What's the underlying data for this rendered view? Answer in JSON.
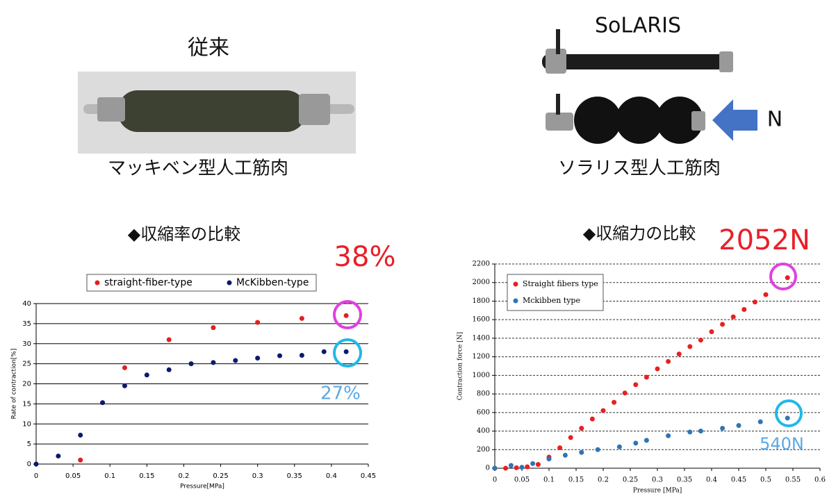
{
  "photos": {
    "left_title": "従来",
    "left_caption": "マッキベン型人工筋肉",
    "right_title": "SoLARIS",
    "right_caption": "ソラリス型人工筋肉",
    "force_label": "N"
  },
  "chart_data": [
    {
      "type": "scatter",
      "title": "◆収縮率の比較",
      "x_label": "Pressure[MPa]",
      "y_label": "Rate of contraction[%]",
      "xlim": [
        0,
        0.45
      ],
      "xticks": [
        0,
        0.05,
        0.1,
        0.15,
        0.2,
        0.25,
        0.3,
        0.35,
        0.4,
        0.45
      ],
      "ylim": [
        0,
        40
      ],
      "yticks": [
        0,
        5,
        10,
        15,
        20,
        25,
        30,
        35,
        40
      ],
      "grid": true,
      "series": [
        {
          "name": "straight-fiber-type",
          "color": "#e02020",
          "x": [
            0.06,
            0.12,
            0.18,
            0.24,
            0.3,
            0.36,
            0.42
          ],
          "values": [
            1,
            24,
            31,
            34,
            35.3,
            36.3,
            37
          ]
        },
        {
          "name": "McKibben-type",
          "color": "#0b1a6e",
          "x": [
            0,
            0.03,
            0.06,
            0.09,
            0.12,
            0.15,
            0.18,
            0.21,
            0.24,
            0.27,
            0.3,
            0.33,
            0.36,
            0.39,
            0.42
          ],
          "values": [
            0,
            2,
            7.2,
            15.3,
            19.5,
            22.2,
            23.5,
            25,
            25.3,
            25.8,
            26.4,
            27,
            27.1,
            28,
            28
          ]
        }
      ],
      "annotations": [
        "38%",
        "27%"
      ]
    },
    {
      "type": "scatter",
      "title": "◆収縮力の比較",
      "x_label": "Pressure [MPa]",
      "y_label": "Contraction force [N]",
      "xlim": [
        0,
        0.6
      ],
      "xticks": [
        0,
        0.05,
        0.1,
        0.15,
        0.2,
        0.25,
        0.3,
        0.35,
        0.4,
        0.45,
        0.5,
        0.55,
        0.6
      ],
      "ylim": [
        0,
        2200
      ],
      "yticks": [
        0,
        200,
        400,
        600,
        800,
        1000,
        1200,
        1400,
        1600,
        1800,
        2000,
        2200
      ],
      "grid": true,
      "series": [
        {
          "name": "Straight fibers type",
          "color": "#e82020",
          "x": [
            0,
            0.02,
            0.04,
            0.06,
            0.08,
            0.1,
            0.12,
            0.14,
            0.16,
            0.18,
            0.2,
            0.22,
            0.24,
            0.26,
            0.28,
            0.3,
            0.32,
            0.34,
            0.36,
            0.38,
            0.4,
            0.42,
            0.44,
            0.46,
            0.48,
            0.5,
            0.54
          ],
          "values": [
            0,
            0,
            5,
            15,
            40,
            120,
            220,
            330,
            430,
            530,
            620,
            710,
            810,
            900,
            980,
            1070,
            1150,
            1230,
            1310,
            1380,
            1470,
            1550,
            1630,
            1710,
            1790,
            1870,
            2052
          ]
        },
        {
          "name": "Mckibben type",
          "color": "#2e75b6",
          "x": [
            0,
            0.03,
            0.05,
            0.07,
            0.1,
            0.13,
            0.16,
            0.19,
            0.23,
            0.26,
            0.28,
            0.32,
            0.36,
            0.38,
            0.42,
            0.45,
            0.49,
            0.54
          ],
          "values": [
            0,
            30,
            10,
            50,
            100,
            140,
            170,
            200,
            230,
            270,
            300,
            350,
            390,
            400,
            430,
            460,
            500,
            540
          ]
        }
      ],
      "annotations": [
        "2052N",
        "540N"
      ]
    }
  ]
}
